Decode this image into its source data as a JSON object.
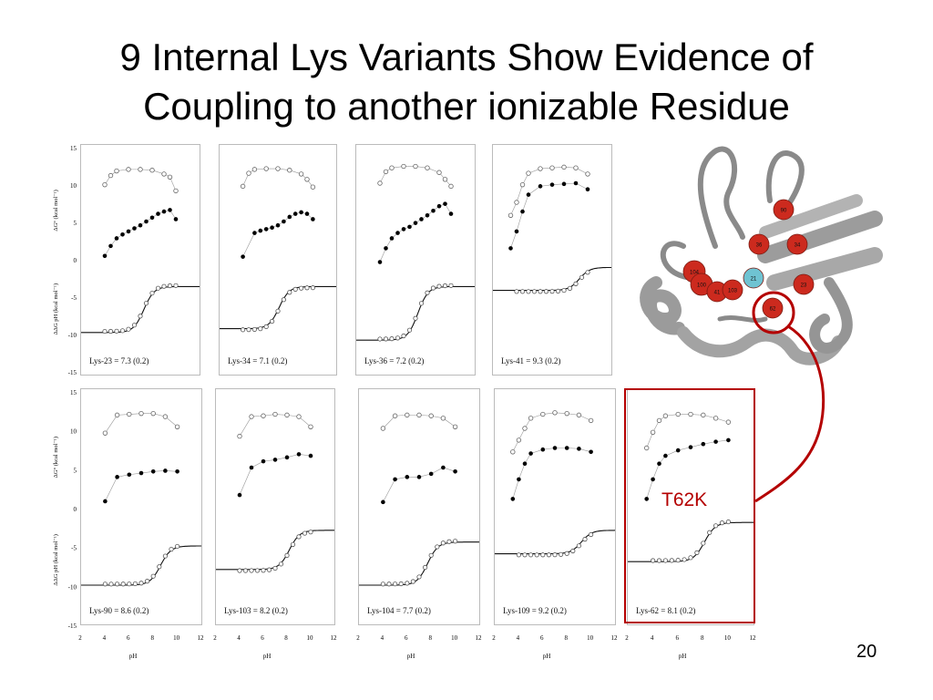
{
  "slide": {
    "title_line1": "9 Internal Lys Variants Show Evidence of",
    "title_line2": "Coupling to another ionizable Residue",
    "highlight_label": "T62K",
    "slide_number": "20"
  },
  "axes": {
    "y_top_label": "ΔG° (kcal mol⁻¹)",
    "y_bottom_label": "ΔΔG pH (kcal mol⁻¹)",
    "x_label": "pH",
    "y_ticks": [
      "15",
      "10",
      "5",
      "0",
      "-5",
      "-10",
      "-15"
    ],
    "x_ticks": [
      "2",
      "4",
      "6",
      "8",
      "10",
      "12"
    ]
  },
  "protein": {
    "residues": [
      "90",
      "36",
      "34",
      "104",
      "21",
      "100",
      "41",
      "103",
      "23",
      "62"
    ],
    "colors": {
      "red": "#cc2a1e",
      "cyan": "#6fc3d2",
      "cartoon": "#9a9a9a",
      "highlight": "#b40000"
    }
  },
  "chart_data": [
    {
      "type": "scatter",
      "label": "Lys-23 = 7.3 (0.2)",
      "open_top": [
        [
          4,
          9.8
        ],
        [
          4.5,
          11
        ],
        [
          5,
          11.6
        ],
        [
          6,
          11.8
        ],
        [
          7,
          11.8
        ],
        [
          8,
          11.7
        ],
        [
          9,
          11.2
        ],
        [
          9.5,
          10.8
        ],
        [
          10,
          9
        ]
      ],
      "filled": [
        [
          4,
          0.5
        ],
        [
          4.5,
          1.8
        ],
        [
          5,
          2.8
        ],
        [
          5.5,
          3.3
        ],
        [
          6,
          3.7
        ],
        [
          6.5,
          4.1
        ],
        [
          7,
          4.5
        ],
        [
          7.5,
          5
        ],
        [
          8,
          5.5
        ],
        [
          8.5,
          6
        ],
        [
          9,
          6.3
        ],
        [
          9.5,
          6.5
        ],
        [
          10,
          5.3
        ]
      ],
      "pka": 7.3,
      "low": -9.5,
      "high": -3.5
    },
    {
      "type": "scatter",
      "label": "Lys-34 = 7.1 (0.2)",
      "open_top": [
        [
          4,
          9.6
        ],
        [
          4.5,
          11.3
        ],
        [
          5,
          11.8
        ],
        [
          6,
          11.9
        ],
        [
          7,
          11.9
        ],
        [
          8,
          11.7
        ],
        [
          9,
          11.2
        ],
        [
          9.5,
          10.5
        ],
        [
          10,
          9.5
        ]
      ],
      "filled": [
        [
          4,
          0.4
        ],
        [
          5,
          3.5
        ],
        [
          5.5,
          3.8
        ],
        [
          6,
          4
        ],
        [
          6.5,
          4.2
        ],
        [
          7,
          4.5
        ],
        [
          7.5,
          5
        ],
        [
          8,
          5.6
        ],
        [
          8.5,
          6
        ],
        [
          9,
          6.2
        ],
        [
          9.5,
          6
        ],
        [
          10,
          5.3
        ]
      ],
      "pka": 7.1,
      "low": -9.0,
      "high": -3.5
    },
    {
      "type": "scatter",
      "label": "Lys-36 = 7.2 (0.2)",
      "open_top": [
        [
          4,
          10
        ],
        [
          4.5,
          11.5
        ],
        [
          5,
          12
        ],
        [
          6,
          12.2
        ],
        [
          7,
          12.2
        ],
        [
          8,
          12
        ],
        [
          9,
          11.4
        ],
        [
          9.5,
          10.5
        ],
        [
          10,
          9.6
        ]
      ],
      "filled": [
        [
          4,
          -0.3
        ],
        [
          4.5,
          1.5
        ],
        [
          5,
          2.8
        ],
        [
          5.5,
          3.5
        ],
        [
          6,
          4
        ],
        [
          6.5,
          4.3
        ],
        [
          7,
          4.8
        ],
        [
          7.5,
          5.3
        ],
        [
          8,
          5.8
        ],
        [
          8.5,
          6.4
        ],
        [
          9,
          7
        ],
        [
          9.5,
          7.3
        ],
        [
          10,
          6
        ]
      ],
      "pka": 7.2,
      "low": -10.5,
      "high": -3.5
    },
    {
      "type": "scatter",
      "label": "Lys-41 = 9.3 (0.2)",
      "open_top": [
        [
          3.5,
          5.8
        ],
        [
          4,
          7.5
        ],
        [
          4.5,
          9.8
        ],
        [
          5,
          11.3
        ],
        [
          6,
          11.9
        ],
        [
          7,
          12
        ],
        [
          8,
          12.1
        ],
        [
          9,
          12
        ],
        [
          10,
          11.2
        ]
      ],
      "filled": [
        [
          3.5,
          1.5
        ],
        [
          4,
          3.7
        ],
        [
          4.5,
          6.3
        ],
        [
          5,
          8.5
        ],
        [
          6,
          9.6
        ],
        [
          7,
          9.8
        ],
        [
          8,
          9.9
        ],
        [
          9,
          10
        ],
        [
          10,
          9.2
        ]
      ],
      "pka": 9.3,
      "low": -4.0,
      "high": -1.0
    },
    {
      "type": "scatter",
      "label": "Lys-90 = 8.6 (0.2)",
      "open_top": [
        [
          4,
          9.4
        ],
        [
          5,
          11.7
        ],
        [
          6,
          11.8
        ],
        [
          7,
          11.9
        ],
        [
          8,
          11.9
        ],
        [
          9,
          11.5
        ],
        [
          10,
          10.2
        ]
      ],
      "filled": [
        [
          4,
          0.7
        ],
        [
          5,
          3.8
        ],
        [
          6,
          4.1
        ],
        [
          7,
          4.3
        ],
        [
          8,
          4.5
        ],
        [
          9,
          4.6
        ],
        [
          10,
          4.5
        ]
      ],
      "pka": 8.6,
      "low": -10.0,
      "high": -5.0
    },
    {
      "type": "scatter",
      "label": "Lys-103 = 8.2 (0.2)",
      "open_top": [
        [
          4,
          9
        ],
        [
          5,
          11.5
        ],
        [
          6,
          11.6
        ],
        [
          7,
          11.8
        ],
        [
          8,
          11.7
        ],
        [
          9,
          11.5
        ],
        [
          10,
          10.2
        ]
      ],
      "filled": [
        [
          4,
          1.5
        ],
        [
          5,
          5
        ],
        [
          6,
          5.8
        ],
        [
          7,
          6
        ],
        [
          8,
          6.3
        ],
        [
          9,
          6.7
        ],
        [
          10,
          6.5
        ]
      ],
      "pka": 8.2,
      "low": -8.0,
      "high": -3.0
    },
    {
      "type": "scatter",
      "label": "Lys-104 = 7.7 (0.2)",
      "open_top": [
        [
          4,
          10
        ],
        [
          5,
          11.6
        ],
        [
          6,
          11.7
        ],
        [
          7,
          11.7
        ],
        [
          8,
          11.6
        ],
        [
          9,
          11.3
        ],
        [
          10,
          10.2
        ]
      ],
      "filled": [
        [
          4,
          0.6
        ],
        [
          5,
          3.5
        ],
        [
          6,
          3.8
        ],
        [
          7,
          3.8
        ],
        [
          8,
          4.2
        ],
        [
          9,
          5
        ],
        [
          10,
          4.5
        ]
      ],
      "pka": 7.7,
      "low": -10.0,
      "high": -4.5
    },
    {
      "type": "scatter",
      "label": "Lys-109 = 9.2 (0.2)",
      "open_top": [
        [
          3.5,
          7
        ],
        [
          4,
          8.5
        ],
        [
          4.5,
          10
        ],
        [
          5,
          11.3
        ],
        [
          6,
          11.8
        ],
        [
          7,
          12
        ],
        [
          8,
          11.9
        ],
        [
          9,
          11.7
        ],
        [
          10,
          11
        ]
      ],
      "filled": [
        [
          3.5,
          1
        ],
        [
          4,
          3.5
        ],
        [
          4.5,
          5.5
        ],
        [
          5,
          6.8
        ],
        [
          6,
          7.3
        ],
        [
          7,
          7.5
        ],
        [
          8,
          7.5
        ],
        [
          9,
          7.4
        ],
        [
          10,
          7
        ]
      ],
      "pka": 9.2,
      "low": -6.0,
      "high": -3.0
    },
    {
      "type": "scatter",
      "label": "Lys-62 = 8.1 (0.2)",
      "open_top": [
        [
          3.5,
          7.5
        ],
        [
          4,
          9.5
        ],
        [
          4.5,
          11
        ],
        [
          5,
          11.6
        ],
        [
          6,
          11.8
        ],
        [
          7,
          11.8
        ],
        [
          8,
          11.7
        ],
        [
          9,
          11.3
        ],
        [
          10,
          10.8
        ]
      ],
      "filled": [
        [
          3.5,
          1
        ],
        [
          4,
          3.5
        ],
        [
          4.5,
          5.5
        ],
        [
          5,
          6.5
        ],
        [
          6,
          7.2
        ],
        [
          7,
          7.6
        ],
        [
          8,
          8
        ],
        [
          9,
          8.3
        ],
        [
          10,
          8.5
        ]
      ],
      "pka": 8.1,
      "low": -7.0,
      "high": -2.0
    }
  ]
}
